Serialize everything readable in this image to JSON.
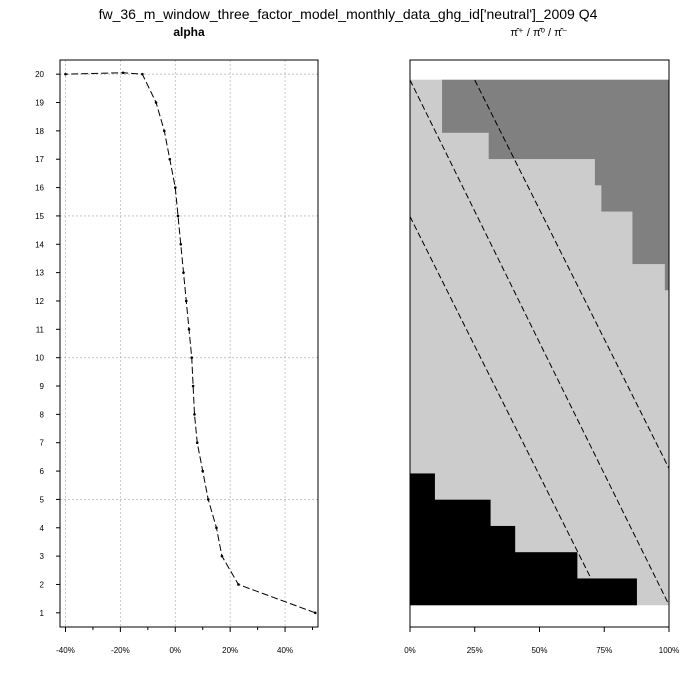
{
  "title": "fw_36_m_window_three_factor_model_monthly_data_ghg_id['neutral']_2009 Q4",
  "chart_data": [
    {
      "type": "line",
      "title": "alpha",
      "xlabel": "",
      "ylabel": "",
      "xlim": [
        -0.42,
        0.52
      ],
      "ylim": [
        0.5,
        20.5
      ],
      "x_ticks": [
        -0.4,
        -0.2,
        0.0,
        0.2,
        0.4
      ],
      "x_tick_labels": [
        "-40%",
        "-20%",
        "0%",
        "20%",
        "40%"
      ],
      "y_ticks": [
        1,
        2,
        3,
        4,
        5,
        6,
        7,
        8,
        9,
        10,
        11,
        12,
        13,
        14,
        15,
        16,
        17,
        18,
        19,
        20
      ],
      "y_tick_labels": [
        "1",
        "2",
        "3",
        "4",
        "5",
        "6",
        "7",
        "8",
        "9",
        "10",
        "11",
        "12",
        "13",
        "14",
        "15",
        "16",
        "17",
        "18",
        "19",
        "20"
      ],
      "grid": true,
      "series": [
        {
          "x": [
            0.51,
            0.23,
            0.17,
            0.15,
            0.12,
            0.1,
            0.08,
            0.07,
            0.065,
            0.06,
            0.05,
            0.04,
            0.03,
            0.02,
            0.01,
            0.0,
            -0.02,
            -0.04,
            -0.07,
            -0.12,
            -0.19,
            -0.4
          ],
          "y": [
            1,
            2,
            3,
            4,
            5,
            6,
            7,
            8,
            9,
            10,
            11,
            12,
            13,
            14,
            15,
            16,
            17,
            18,
            19,
            20,
            20.05,
            20.0
          ]
        }
      ]
    },
    {
      "type": "heatmap",
      "title": "π̂⁺ / π̂⁰ / π̂⁻",
      "xlabel": "",
      "ylabel": "",
      "xlim": [
        0,
        1
      ],
      "ylim": [
        0,
        1
      ],
      "x_ticks": [
        0,
        0.25,
        0.5,
        0.75,
        1.0
      ],
      "x_tick_labels": [
        "0%",
        "25%",
        "50%",
        "75%",
        "100%"
      ],
      "colors": {
        "top_region": "#808080",
        "middle_region": "#cccccc",
        "bottom_region": "#000000",
        "background": "#ffffff"
      },
      "top_region_steps": [
        {
          "x0": 0.125,
          "x1": 1.0,
          "y_from": 0.9,
          "y_to": 1.0
        },
        {
          "x0": 0.305,
          "x1": 1.0,
          "y_from": 0.85,
          "y_to": 0.9
        },
        {
          "x0": 0.715,
          "x1": 1.0,
          "y_from": 0.8,
          "y_to": 0.85
        },
        {
          "x0": 0.74,
          "x1": 1.0,
          "y_from": 0.75,
          "y_to": 0.8
        },
        {
          "x0": 0.86,
          "x1": 1.0,
          "y_from": 0.65,
          "y_to": 0.75
        },
        {
          "x0": 0.985,
          "x1": 1.0,
          "y_from": 0.6,
          "y_to": 0.65
        }
      ],
      "bottom_region_steps": [
        {
          "x0": 0.0,
          "x1": 0.095,
          "y_from": 0.2,
          "y_to": 0.25
        },
        {
          "x0": 0.0,
          "x1": 0.31,
          "y_from": 0.15,
          "y_to": 0.2
        },
        {
          "x0": 0.0,
          "x1": 0.405,
          "y_from": 0.1,
          "y_to": 0.15
        },
        {
          "x0": 0.0,
          "x1": 0.645,
          "y_from": 0.05,
          "y_to": 0.1
        },
        {
          "x0": 0.0,
          "x1": 0.875,
          "y_from": 0.0,
          "y_to": 0.05
        }
      ],
      "middle_region_steps": [
        {
          "x0": 0.0,
          "x1": 0.125,
          "y_from": 0.9,
          "y_to": 1.0
        },
        {
          "x0": 0.0,
          "x1": 0.305,
          "y_from": 0.85,
          "y_to": 0.9
        },
        {
          "x0": 0.0,
          "x1": 0.715,
          "y_from": 0.8,
          "y_to": 0.85
        },
        {
          "x0": 0.0,
          "x1": 0.74,
          "y_from": 0.75,
          "y_to": 0.8
        },
        {
          "x0": 0.0,
          "x1": 0.86,
          "y_from": 0.65,
          "y_to": 0.75
        },
        {
          "x0": 0.0,
          "x1": 0.985,
          "y_from": 0.6,
          "y_to": 0.65
        },
        {
          "x0": 0.0,
          "x1": 1.0,
          "y_from": 0.25,
          "y_to": 0.6
        },
        {
          "x0": 0.095,
          "x1": 1.0,
          "y_from": 0.2,
          "y_to": 0.25
        },
        {
          "x0": 0.31,
          "x1": 1.0,
          "y_from": 0.15,
          "y_to": 0.2
        },
        {
          "x0": 0.405,
          "x1": 1.0,
          "y_from": 0.1,
          "y_to": 0.15
        },
        {
          "x0": 0.645,
          "x1": 1.0,
          "y_from": 0.05,
          "y_to": 0.1
        },
        {
          "x0": 0.875,
          "x1": 1.0,
          "y_from": 0.0,
          "y_to": 0.05
        }
      ],
      "dashed_lines": [
        {
          "x1": 0.0,
          "y1": 1.0,
          "x2": 1.0,
          "y2": 0.0
        },
        {
          "x1": 0.0,
          "y1": 0.74,
          "x2": 0.75,
          "y2": 0.0
        },
        {
          "x1": 0.25,
          "y1": 1.0,
          "x2": 1.0,
          "y2": 0.26
        }
      ]
    }
  ]
}
